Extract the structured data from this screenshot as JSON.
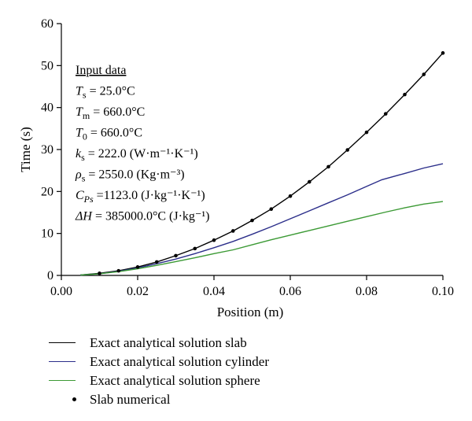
{
  "chart_data": {
    "type": "line",
    "xlabel": "Position (m)",
    "ylabel": "Time (s)",
    "xlim": [
      0.0,
      0.1
    ],
    "ylim": [
      0,
      60
    ],
    "xticks": [
      "0.00",
      "0.02",
      "0.04",
      "0.06",
      "0.08",
      "0.10"
    ],
    "yticks": [
      "0",
      "10",
      "20",
      "30",
      "40",
      "50",
      "60"
    ],
    "grid": false,
    "legend_position": "bottom",
    "series": [
      {
        "name": "Exact analytical solution slab",
        "color": "#000000",
        "style": "line",
        "x": [
          0.005,
          0.01,
          0.015,
          0.02,
          0.025,
          0.03,
          0.035,
          0.04,
          0.045,
          0.05,
          0.055,
          0.06,
          0.065,
          0.07,
          0.075,
          0.08,
          0.085,
          0.09,
          0.095,
          0.1
        ],
        "y": [
          0.1,
          0.5,
          1.1,
          2.0,
          3.2,
          4.7,
          6.4,
          8.4,
          10.6,
          13.1,
          15.8,
          18.9,
          22.3,
          25.9,
          29.9,
          34.1,
          38.5,
          43.1,
          47.9,
          53.0
        ]
      },
      {
        "name": "Exact analytical solution cylinder",
        "color": "#2b2e8a",
        "style": "line",
        "x": [
          0.005,
          0.01,
          0.015,
          0.02,
          0.025,
          0.03,
          0.035,
          0.04,
          0.045,
          0.05,
          0.055,
          0.06,
          0.065,
          0.07,
          0.075,
          0.08,
          0.084,
          0.09,
          0.095,
          0.1
        ],
        "y": [
          0.1,
          0.4,
          1.0,
          1.8,
          2.8,
          3.9,
          5.2,
          6.6,
          8.1,
          9.8,
          11.6,
          13.5,
          15.4,
          17.3,
          19.2,
          21.2,
          22.8,
          24.3,
          25.6,
          26.6
        ]
      },
      {
        "name": "Exact analytical solution sphere",
        "color": "#3c9a35",
        "style": "line",
        "x": [
          0.005,
          0.01,
          0.015,
          0.02,
          0.025,
          0.03,
          0.035,
          0.04,
          0.045,
          0.05,
          0.055,
          0.06,
          0.065,
          0.07,
          0.075,
          0.08,
          0.085,
          0.09,
          0.095,
          0.1
        ],
        "y": [
          0.1,
          0.4,
          0.9,
          1.6,
          2.4,
          3.3,
          4.2,
          5.2,
          6.1,
          7.3,
          8.5,
          9.6,
          10.7,
          11.8,
          12.9,
          14.0,
          15.1,
          16.1,
          17.0,
          17.6
        ]
      },
      {
        "name": "Slab numerical",
        "color": "#000000",
        "style": "points",
        "x": [
          0.01,
          0.015,
          0.02,
          0.025,
          0.03,
          0.035,
          0.04,
          0.045,
          0.05,
          0.055,
          0.06,
          0.065,
          0.07,
          0.075,
          0.08,
          0.085,
          0.09,
          0.095,
          0.1
        ],
        "y": [
          0.5,
          1.1,
          2.0,
          3.2,
          4.7,
          6.4,
          8.4,
          10.6,
          13.1,
          15.8,
          18.9,
          22.3,
          25.9,
          29.9,
          34.1,
          38.5,
          43.1,
          47.9,
          53.0
        ]
      }
    ],
    "annotation": {
      "heading": "Input data",
      "lines": [
        {
          "sym": "T",
          "sub": "s",
          "rest": " = 25.0°C"
        },
        {
          "sym": "T",
          "sub": "m",
          "rest": " = 660.0°C"
        },
        {
          "sym": "T",
          "sub": "0",
          "rest": " = 660.0°C"
        },
        {
          "sym": "k",
          "sub": "s",
          "rest": " = 222.0 (W·m⁻¹·K⁻¹)"
        },
        {
          "sym": "ρ",
          "sub": "s",
          "rest": " = 2550.0 (Kg·m⁻³)"
        },
        {
          "sym": "C",
          "sub": "Ps",
          "rest": " =1123.0 (J·kg⁻¹·K⁻¹)"
        },
        {
          "sym": "ΔH",
          "sub": "",
          "rest": " = 385000.0°C (J·kg⁻¹)"
        }
      ]
    }
  }
}
